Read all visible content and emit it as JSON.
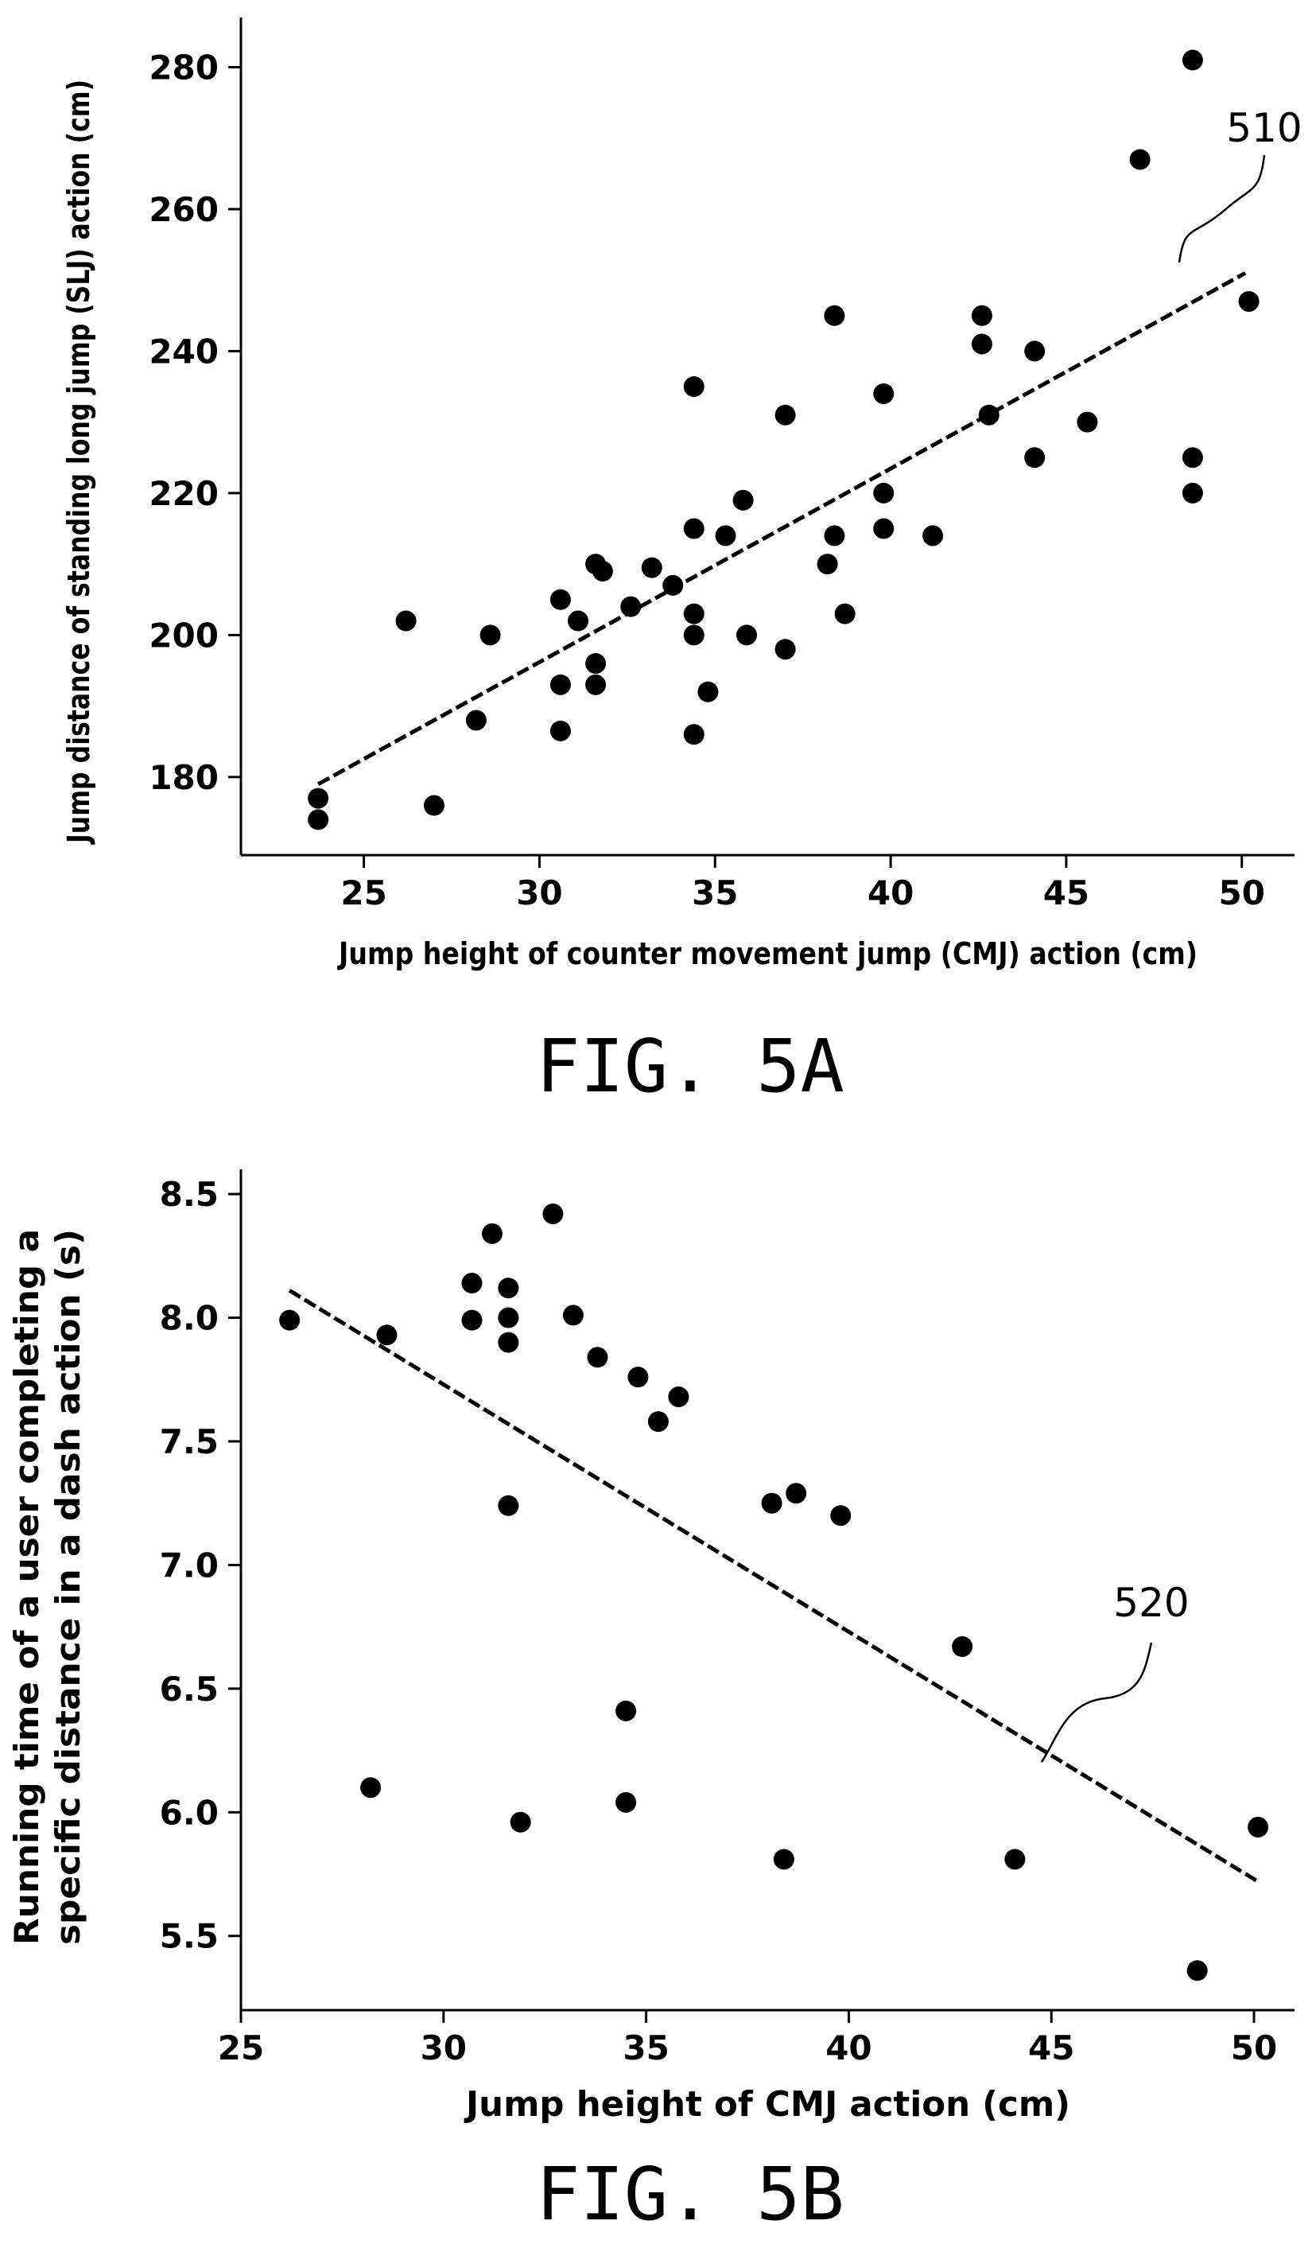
{
  "chart_data": [
    {
      "type": "scatter",
      "caption": "FIG. 5A",
      "xlabel": "Jump height of counter movement jump (CMJ) action (cm)",
      "ylabel": "Jump distance of standing long jump (SLJ) action (cm)",
      "xlim": [
        21.5,
        51.5
      ],
      "ylim": [
        169,
        287
      ],
      "xticks": [
        25,
        30,
        35,
        40,
        45,
        50
      ],
      "yticks": [
        180,
        200,
        220,
        240,
        260,
        280
      ],
      "xtick_labels": [
        "25",
        "30",
        "35",
        "40",
        "45",
        "50"
      ],
      "ytick_labels": [
        "180",
        "200",
        "220",
        "240",
        "260",
        "280"
      ],
      "grid": false,
      "points": [
        [
          23.7,
          177
        ],
        [
          23.7,
          174
        ],
        [
          26.2,
          202
        ],
        [
          27.0,
          176
        ],
        [
          28.2,
          188
        ],
        [
          28.6,
          200
        ],
        [
          30.6,
          205
        ],
        [
          30.6,
          193
        ],
        [
          30.6,
          186.5
        ],
        [
          31.1,
          202
        ],
        [
          31.6,
          210
        ],
        [
          31.6,
          196
        ],
        [
          31.6,
          193
        ],
        [
          31.8,
          209
        ],
        [
          32.6,
          204
        ],
        [
          33.2,
          209.5
        ],
        [
          33.8,
          207
        ],
        [
          34.4,
          235
        ],
        [
          34.4,
          215
        ],
        [
          34.4,
          203
        ],
        [
          34.4,
          200
        ],
        [
          34.4,
          186
        ],
        [
          34.8,
          192
        ],
        [
          35.3,
          214
        ],
        [
          35.8,
          219
        ],
        [
          35.9,
          200
        ],
        [
          37.0,
          231
        ],
        [
          37.0,
          198
        ],
        [
          38.2,
          210
        ],
        [
          38.4,
          245
        ],
        [
          38.4,
          214
        ],
        [
          38.7,
          203
        ],
        [
          39.8,
          234
        ],
        [
          39.8,
          220
        ],
        [
          39.8,
          215
        ],
        [
          41.2,
          214
        ],
        [
          42.6,
          245
        ],
        [
          42.6,
          241
        ],
        [
          42.8,
          231
        ],
        [
          44.1,
          240
        ],
        [
          44.1,
          225
        ],
        [
          45.6,
          230
        ],
        [
          47.1,
          267
        ],
        [
          48.6,
          281
        ],
        [
          48.6,
          225
        ],
        [
          48.6,
          220
        ],
        [
          50.2,
          247
        ]
      ],
      "trendline": {
        "label": "510",
        "from": [
          23.7,
          179
        ],
        "to": [
          50.1,
          251
        ]
      }
    },
    {
      "type": "scatter",
      "caption": "FIG. 5B",
      "xlabel": "Jump height of CMJ action (cm)",
      "ylabel_lines": [
        "Running time of a user completing a",
        "specific distance in a dash action (s)"
      ],
      "xlim": [
        25,
        51
      ],
      "ylim": [
        5.2,
        8.6
      ],
      "xticks": [
        25,
        30,
        35,
        40,
        45,
        50
      ],
      "yticks": [
        5.5,
        6.0,
        6.5,
        7.0,
        7.5,
        8.0,
        8.5
      ],
      "xtick_labels": [
        "25",
        "30",
        "35",
        "40",
        "45",
        "50"
      ],
      "ytick_labels": [
        "5.5",
        "6.0",
        "6.5",
        "7.0",
        "7.5",
        "8.0",
        "8.5"
      ],
      "grid": false,
      "points": [
        [
          26.2,
          7.99
        ],
        [
          28.2,
          6.1
        ],
        [
          28.6,
          7.93
        ],
        [
          30.7,
          8.14
        ],
        [
          30.7,
          7.99
        ],
        [
          31.2,
          8.34
        ],
        [
          31.6,
          8.12
        ],
        [
          31.6,
          8.0
        ],
        [
          31.6,
          7.9
        ],
        [
          31.6,
          7.24
        ],
        [
          31.9,
          5.96
        ],
        [
          32.7,
          8.42
        ],
        [
          33.2,
          8.01
        ],
        [
          33.8,
          7.84
        ],
        [
          34.5,
          6.41
        ],
        [
          34.5,
          6.04
        ],
        [
          34.8,
          7.76
        ],
        [
          35.3,
          7.58
        ],
        [
          35.8,
          7.68
        ],
        [
          38.1,
          7.25
        ],
        [
          38.4,
          5.81
        ],
        [
          38.7,
          7.29
        ],
        [
          39.8,
          7.2
        ],
        [
          42.8,
          6.67
        ],
        [
          44.1,
          5.81
        ],
        [
          48.6,
          5.36
        ],
        [
          50.1,
          5.94
        ]
      ],
      "trendline": {
        "label": "520",
        "from": [
          26.2,
          8.11
        ],
        "to": [
          50.1,
          5.72
        ]
      }
    }
  ]
}
